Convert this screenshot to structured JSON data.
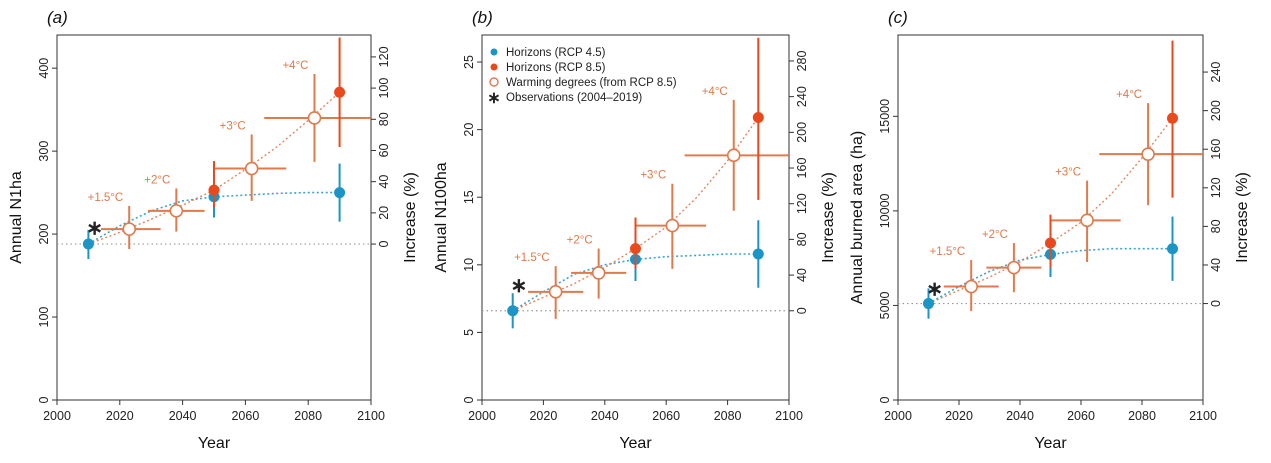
{
  "colors": {
    "rcp45": "#1b94c6",
    "rcp85": "#e8491d",
    "warming": "#e07a4c",
    "obs": "#222222",
    "baseline": "#999999",
    "axis": "#333333"
  },
  "legend": {
    "placement": "top-left of panel (b)",
    "items": [
      {
        "key": "rcp45",
        "label": "Horizons (RCP 4.5)"
      },
      {
        "key": "rcp85",
        "label": "Horizons (RCP 8.5)"
      },
      {
        "key": "warming",
        "label": "Warming degrees (from RCP 8.5)"
      },
      {
        "key": "obs",
        "label": "Observations (2004–2019)"
      }
    ]
  },
  "chart_data": [
    {
      "type": "scatter",
      "panel_label": "(a)",
      "xlabel": "Year",
      "ylabel": "Annual N1ha",
      "ylabel_right": "Increase (%)",
      "xlim": [
        2000,
        2100
      ],
      "ylim": [
        0,
        440
      ],
      "xticks": [
        2000,
        2020,
        2040,
        2060,
        2080,
        2100
      ],
      "yticks": [
        0,
        100,
        200,
        300,
        400
      ],
      "right_ticks": [
        0,
        20,
        40,
        60,
        80,
        100,
        120
      ],
      "baseline": 188,
      "observation": {
        "x": 2012,
        "y": 208
      },
      "rcp45": [
        {
          "x": 2010,
          "y": 188,
          "low": 170,
          "high": 205
        },
        {
          "x": 2050,
          "y": 245,
          "low": 220,
          "high": 268
        },
        {
          "x": 2090,
          "y": 250,
          "low": 215,
          "high": 285
        }
      ],
      "rcp85": [
        {
          "x": 2050,
          "y": 253,
          "low": 232,
          "high": 288
        },
        {
          "x": 2090,
          "y": 371,
          "low": 305,
          "high": 437
        }
      ],
      "rcp45_curve": [
        [
          2010,
          188
        ],
        [
          2020,
          210
        ],
        [
          2030,
          228
        ],
        [
          2040,
          240
        ],
        [
          2050,
          245
        ],
        [
          2060,
          247
        ],
        [
          2070,
          249
        ],
        [
          2080,
          250
        ],
        [
          2090,
          250
        ]
      ],
      "rcp85_curve": [
        [
          2010,
          188
        ],
        [
          2020,
          202
        ],
        [
          2030,
          218
        ],
        [
          2040,
          235
        ],
        [
          2050,
          253
        ],
        [
          2060,
          278
        ],
        [
          2070,
          305
        ],
        [
          2080,
          337
        ],
        [
          2090,
          371
        ]
      ],
      "warming": [
        {
          "label": "+1.5°C",
          "x": 2023,
          "y": 206,
          "xmin": 2014,
          "xmax": 2033,
          "low": 182,
          "high": 234
        },
        {
          "label": "+2°C",
          "x": 2038,
          "y": 228,
          "xmin": 2029,
          "xmax": 2047,
          "low": 203,
          "high": 255
        },
        {
          "label": "+3°C",
          "x": 2062,
          "y": 279,
          "xmin": 2050,
          "xmax": 2073,
          "low": 240,
          "high": 320
        },
        {
          "label": "+4°C",
          "x": 2082,
          "y": 340,
          "xmin": 2066,
          "xmax": 2099,
          "low": 287,
          "high": 393
        }
      ]
    },
    {
      "type": "scatter",
      "panel_label": "(b)",
      "xlabel": "Year",
      "ylabel": "Annual N100ha",
      "ylabel_right": "Increase (%)",
      "xlim": [
        2000,
        2100
      ],
      "ylim": [
        0,
        27
      ],
      "xticks": [
        2000,
        2020,
        2040,
        2060,
        2080,
        2100
      ],
      "yticks": [
        0,
        5,
        10,
        15,
        20,
        25
      ],
      "right_ticks": [
        0,
        40,
        80,
        120,
        160,
        200,
        240,
        280
      ],
      "baseline": 6.6,
      "observation": {
        "x": 2012,
        "y": 8.5
      },
      "rcp45": [
        {
          "x": 2010,
          "y": 6.6,
          "low": 5.3,
          "high": 7.9
        },
        {
          "x": 2050,
          "y": 10.4,
          "low": 8.8,
          "high": 11.9
        },
        {
          "x": 2090,
          "y": 10.8,
          "low": 8.3,
          "high": 13.3
        }
      ],
      "rcp85": [
        {
          "x": 2050,
          "y": 11.2,
          "low": 9.7,
          "high": 13.5
        },
        {
          "x": 2090,
          "y": 20.9,
          "low": 14.8,
          "high": 26.8
        }
      ],
      "rcp45_curve": [
        [
          2010,
          6.6
        ],
        [
          2020,
          8.0
        ],
        [
          2030,
          9.3
        ],
        [
          2040,
          10.0
        ],
        [
          2050,
          10.4
        ],
        [
          2060,
          10.6
        ],
        [
          2070,
          10.7
        ],
        [
          2080,
          10.8
        ],
        [
          2090,
          10.8
        ]
      ],
      "rcp85_curve": [
        [
          2010,
          6.6
        ],
        [
          2020,
          7.6
        ],
        [
          2030,
          8.6
        ],
        [
          2040,
          9.8
        ],
        [
          2050,
          11.2
        ],
        [
          2060,
          12.8
        ],
        [
          2070,
          15.0
        ],
        [
          2080,
          17.7
        ],
        [
          2090,
          20.9
        ]
      ],
      "warming": [
        {
          "label": "+1.5°C",
          "x": 2024,
          "y": 8.0,
          "xmin": 2015,
          "xmax": 2033,
          "low": 6.0,
          "high": 9.9
        },
        {
          "label": "+2°C",
          "x": 2038,
          "y": 9.4,
          "xmin": 2029,
          "xmax": 2047,
          "low": 7.5,
          "high": 11.2
        },
        {
          "label": "+3°C",
          "x": 2062,
          "y": 12.9,
          "xmin": 2050,
          "xmax": 2073,
          "low": 9.7,
          "high": 16.0
        },
        {
          "label": "+4°C",
          "x": 2082,
          "y": 18.1,
          "xmin": 2066,
          "xmax": 2099,
          "low": 14.0,
          "high": 22.2
        }
      ]
    },
    {
      "type": "scatter",
      "panel_label": "(c)",
      "xlabel": "Year",
      "ylabel": "Annual burned area (ha)",
      "ylabel_right": "Increase (%)",
      "xlim": [
        2000,
        2100
      ],
      "ylim": [
        0,
        19300
      ],
      "xticks": [
        2000,
        2020,
        2040,
        2060,
        2080,
        2100
      ],
      "yticks": [
        0,
        5000,
        10000,
        15000
      ],
      "right_ticks": [
        0,
        40,
        80,
        120,
        160,
        200,
        240
      ],
      "baseline": 5100,
      "observation": {
        "x": 2012,
        "y": 5900
      },
      "rcp45": [
        {
          "x": 2010,
          "y": 5100,
          "low": 4300,
          "high": 5900
        },
        {
          "x": 2050,
          "y": 7700,
          "low": 6500,
          "high": 8800
        },
        {
          "x": 2090,
          "y": 8000,
          "low": 6300,
          "high": 9700
        }
      ],
      "rcp85": [
        {
          "x": 2050,
          "y": 8300,
          "low": 7000,
          "high": 9800
        },
        {
          "x": 2090,
          "y": 14900,
          "low": 10700,
          "high": 19000
        }
      ],
      "rcp45_curve": [
        [
          2010,
          5100
        ],
        [
          2020,
          6000
        ],
        [
          2030,
          6800
        ],
        [
          2040,
          7400
        ],
        [
          2050,
          7700
        ],
        [
          2060,
          7900
        ],
        [
          2070,
          8000
        ],
        [
          2080,
          8000
        ],
        [
          2090,
          8000
        ]
      ],
      "rcp85_curve": [
        [
          2010,
          5100
        ],
        [
          2020,
          5800
        ],
        [
          2030,
          6500
        ],
        [
          2040,
          7300
        ],
        [
          2050,
          8300
        ],
        [
          2060,
          9400
        ],
        [
          2070,
          10900
        ],
        [
          2080,
          12800
        ],
        [
          2090,
          14900
        ]
      ],
      "warming": [
        {
          "label": "+1.5°C",
          "x": 2024,
          "y": 6000,
          "xmin": 2015,
          "xmax": 2033,
          "low": 4700,
          "high": 7400
        },
        {
          "label": "+2°C",
          "x": 2038,
          "y": 7000,
          "xmin": 2029,
          "xmax": 2047,
          "low": 5700,
          "high": 8300
        },
        {
          "label": "+3°C",
          "x": 2062,
          "y": 9500,
          "xmin": 2050,
          "xmax": 2073,
          "low": 7300,
          "high": 11600
        },
        {
          "label": "+4°C",
          "x": 2082,
          "y": 13000,
          "xmin": 2066,
          "xmax": 2099,
          "low": 10300,
          "high": 15700
        }
      ]
    }
  ]
}
